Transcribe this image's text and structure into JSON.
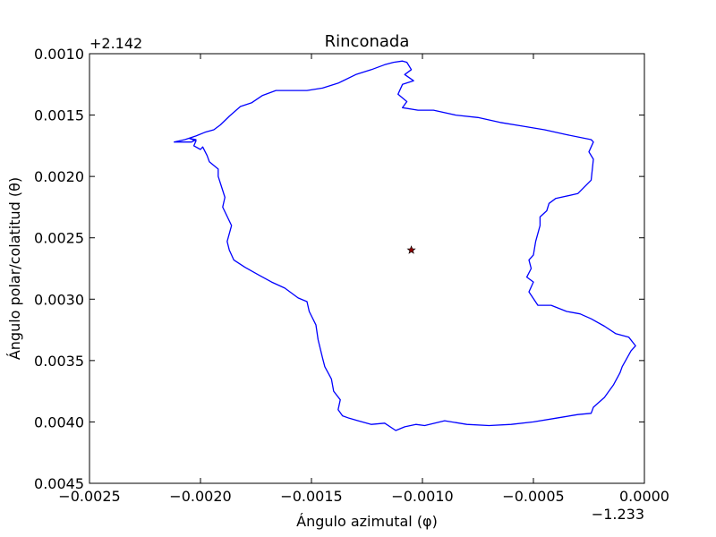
{
  "chart_data": {
    "type": "line",
    "title": "Rinconada",
    "xlabel": "Ángulo azimutal (φ)",
    "ylabel": "Ángulo polar/colatitud (θ)",
    "x_offset_label": "−1.233",
    "y_offset_label": "+2.142",
    "x_offset": -1.233,
    "y_offset": 2.142,
    "xlim": [
      -0.0025,
      0.0
    ],
    "ylim": [
      0.0045,
      0.001
    ],
    "y_inverted": true,
    "x_ticks": [
      -0.0025,
      -0.002,
      -0.0015,
      -0.001,
      -0.0005,
      0.0
    ],
    "x_tick_labels": [
      "−0.0025",
      "−0.0020",
      "−0.0015",
      "−0.0010",
      "−0.0005",
      "0.0000"
    ],
    "y_ticks": [
      0.001,
      0.0015,
      0.002,
      0.0025,
      0.003,
      0.0035,
      0.004,
      0.0045
    ],
    "y_tick_labels": [
      "0.0010",
      "0.0015",
      "0.0020",
      "0.0025",
      "0.0030",
      "0.0035",
      "0.0040",
      "0.0045"
    ],
    "grid": false,
    "series": [
      {
        "color": "#0000ff",
        "x": [
          -0.00212,
          -0.00207,
          -0.00202,
          -0.00198,
          -0.00194,
          -0.00191,
          -0.00187,
          -0.00182,
          -0.00177,
          -0.00172,
          -0.00166,
          -0.0016,
          -0.00152,
          -0.00145,
          -0.00138,
          -0.0013,
          -0.00123,
          -0.00117,
          -0.00113,
          -0.00109,
          -0.00107,
          -0.00105,
          -0.00108,
          -0.00104,
          -0.00109,
          -0.00111,
          -0.00107,
          -0.00109,
          -0.00102,
          -0.00095,
          -0.00085,
          -0.00075,
          -0.00065,
          -0.00055,
          -0.00045,
          -0.00035,
          -0.00024,
          -0.00023,
          -0.00024,
          -0.00025,
          -0.00023,
          -0.00024,
          -0.0003,
          -0.0004,
          -0.00043,
          -0.00044,
          -0.00047,
          -0.00047,
          -0.00049,
          -0.0005,
          -0.00052,
          -0.00051,
          -0.00053,
          -0.0005,
          -0.00052,
          -0.00048,
          -0.00042,
          -0.00035,
          -0.00029,
          -0.00024,
          -0.00018,
          -0.00013,
          -7e-05,
          -4e-05,
          -6e-05,
          -0.0001,
          -0.00011,
          -0.00014,
          -0.00016,
          -0.00018,
          -0.00023,
          -0.00024,
          -0.0003,
          -0.0004,
          -0.0005,
          -0.0006,
          -0.0007,
          -0.0008,
          -0.0009,
          -0.00099,
          -0.00103,
          -0.00108,
          -0.00112,
          -0.00117,
          -0.00123,
          -0.00129,
          -0.00133,
          -0.00136,
          -0.00138,
          -0.00137,
          -0.0014,
          -0.00141,
          -0.00144,
          -0.00145,
          -0.00147,
          -0.00148,
          -0.00151,
          -0.00152,
          -0.00156,
          -0.00162,
          -0.00168,
          -0.00174,
          -0.0018,
          -0.00185,
          -0.00187,
          -0.00188,
          -0.00186,
          -0.0019,
          -0.00189,
          -0.00192,
          -0.00192,
          -0.00196,
          -0.00197,
          -0.00199,
          -0.002,
          -0.00203,
          -0.00202,
          -0.00205,
          -0.00202,
          -0.00204,
          -0.00207,
          -0.00212
        ],
        "y": [
          0.00172,
          0.0017,
          0.00167,
          0.00164,
          0.00162,
          0.00158,
          0.00151,
          0.00143,
          0.0014,
          0.00134,
          0.0013,
          0.0013,
          0.0013,
          0.00128,
          0.00124,
          0.00117,
          0.00113,
          0.00109,
          0.00107,
          0.00106,
          0.00107,
          0.00113,
          0.00117,
          0.00122,
          0.00125,
          0.00133,
          0.00139,
          0.00144,
          0.00146,
          0.00146,
          0.0015,
          0.00152,
          0.00156,
          0.00159,
          0.00162,
          0.00166,
          0.0017,
          0.00172,
          0.00176,
          0.0018,
          0.00186,
          0.00203,
          0.00214,
          0.00218,
          0.00222,
          0.00228,
          0.00233,
          0.0024,
          0.00253,
          0.00264,
          0.00268,
          0.00275,
          0.00282,
          0.00286,
          0.00294,
          0.00305,
          0.00305,
          0.0031,
          0.00312,
          0.00316,
          0.00322,
          0.00328,
          0.00331,
          0.00338,
          0.00342,
          0.00355,
          0.0036,
          0.0037,
          0.00375,
          0.0038,
          0.00388,
          0.00393,
          0.00394,
          0.00397,
          0.004,
          0.00402,
          0.00403,
          0.00402,
          0.00399,
          0.00403,
          0.00402,
          0.00404,
          0.00407,
          0.00401,
          0.00402,
          0.00399,
          0.00397,
          0.00395,
          0.0039,
          0.00382,
          0.00375,
          0.00365,
          0.00355,
          0.00348,
          0.00333,
          0.00321,
          0.0031,
          0.00302,
          0.00299,
          0.00291,
          0.00286,
          0.0028,
          0.00274,
          0.00268,
          0.0026,
          0.00253,
          0.0024,
          0.00225,
          0.00217,
          0.002,
          0.00194,
          0.00188,
          0.00183,
          0.00176,
          0.00178,
          0.00175,
          0.00171,
          0.00169,
          0.0017,
          0.00172,
          0.00172,
          0.00172
        ]
      }
    ],
    "marker": {
      "x": -0.00105,
      "y": 0.0026,
      "symbol": "star",
      "color": "#8b0000"
    }
  }
}
